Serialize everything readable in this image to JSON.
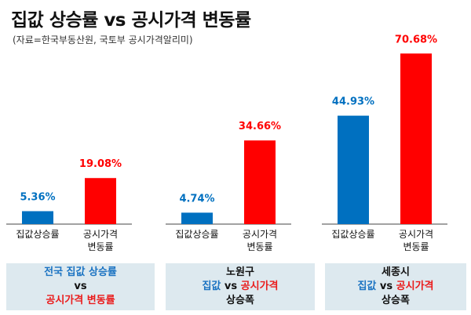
{
  "header": {
    "title": "집값 상승률 vs 공시가격 변동률",
    "subtitle": "(자료=한국부동산원, 국토부 공시가격알리미)"
  },
  "colors": {
    "house_price": "#0070c0",
    "public_price": "#ff0000",
    "box_bg": "#dde9ef"
  },
  "chart_data": {
    "type": "bar",
    "groups": [
      {
        "bars": [
          {
            "label": [
              "집값상승률"
            ],
            "value": 5.36,
            "display": "5.36%",
            "series": "house_price"
          },
          {
            "label": [
              "공시가격",
              "변동률"
            ],
            "value": 19.08,
            "display": "19.08%",
            "series": "public_price"
          }
        ]
      },
      {
        "bars": [
          {
            "label": [
              "집값상승률"
            ],
            "value": 4.74,
            "display": "4.74%",
            "series": "house_price"
          },
          {
            "label": [
              "공시가격",
              "변동률"
            ],
            "value": 34.66,
            "display": "34.66%",
            "series": "public_price"
          }
        ]
      },
      {
        "bars": [
          {
            "label": [
              "집값상승률"
            ],
            "value": 44.93,
            "display": "44.93%",
            "series": "house_price"
          },
          {
            "label": [
              "공시가격",
              "변동률"
            ],
            "value": 70.68,
            "display": "70.68%",
            "series": "public_price"
          }
        ]
      }
    ]
  },
  "boxes": [
    {
      "line1": "전국 집값 상승률",
      "line2": "vs",
      "line3": "공시가격 변동률"
    },
    {
      "region": "노원구",
      "blue": "집값",
      "vs": "vs",
      "red": "공시가격",
      "bottom": "상승폭"
    },
    {
      "region": "세종시",
      "blue": "집값",
      "vs": "vs",
      "red": "공시가격",
      "bottom": "상승폭"
    }
  ]
}
